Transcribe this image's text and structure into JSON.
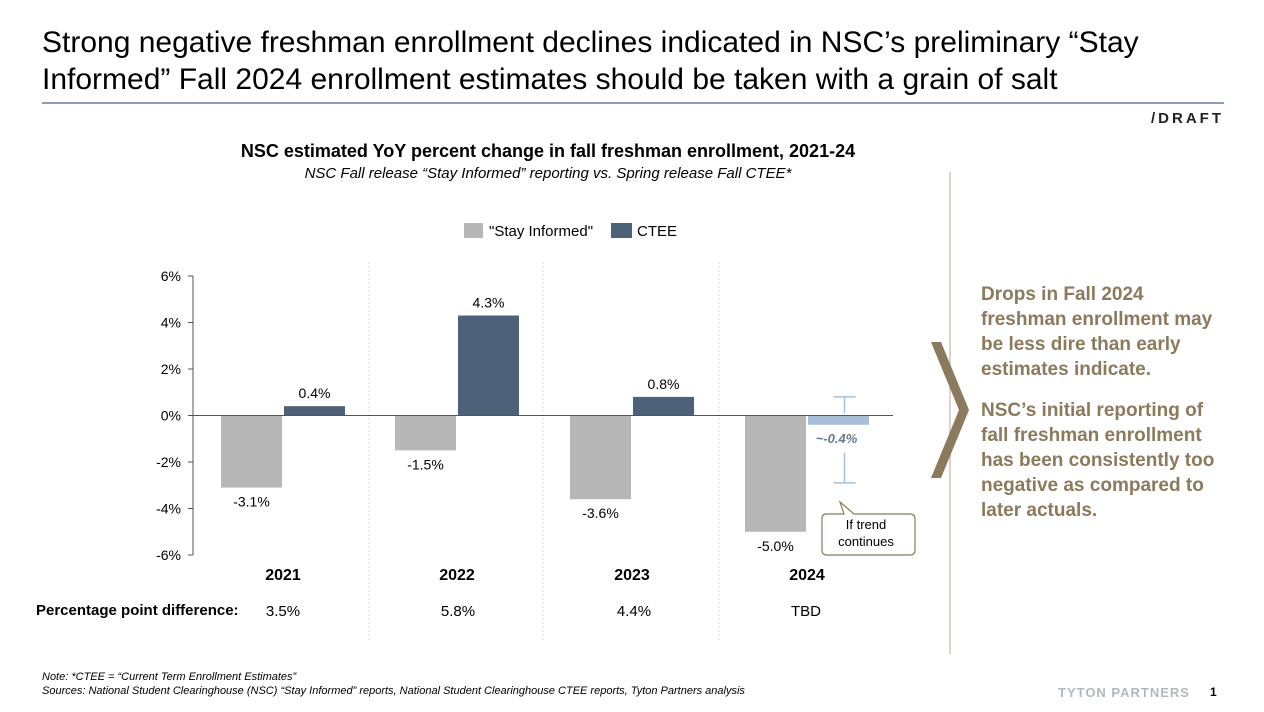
{
  "slide": {
    "title": "Strong negative freshman enrollment declines indicated in NSC’s preliminary “Stay Informed” Fall 2024 enrollment estimates should be taken with a grain of salt",
    "draft_label": "/DRAFT",
    "page_number": "1",
    "brand": "TYTON PARTNERS"
  },
  "chart_data": {
    "type": "bar",
    "title": "NSC estimated YoY percent change in fall freshman enrollment, 2021-24",
    "subtitle": "NSC Fall release “Stay Informed” reporting vs. Spring release Fall CTEE*",
    "categories": [
      "2021",
      "2022",
      "2023",
      "2024"
    ],
    "series": [
      {
        "name": "\"Stay Informed\"",
        "color": "#b7b7b7",
        "values": [
          -3.1,
          -1.5,
          -3.6,
          -5.0
        ],
        "labels": [
          "-3.1%",
          "-1.5%",
          "-3.6%",
          "-5.0%"
        ]
      },
      {
        "name": "CTEE",
        "color": "#4d6178",
        "values": [
          0.4,
          4.3,
          0.8,
          -0.4
        ],
        "labels": [
          "0.4%",
          "4.3%",
          "0.8%",
          "~-0.4%"
        ]
      }
    ],
    "projected_color": "#a8bfd9",
    "projection_range": [
      0.8,
      -2.9
    ],
    "projection_note": "If trend continues",
    "ylim": [
      -6,
      6
    ],
    "yticks": [
      6,
      4,
      2,
      0,
      -2,
      -4,
      -6
    ],
    "ytick_labels": [
      "6%",
      "4%",
      "2%",
      "0%",
      "-2%",
      "-4%",
      "-6%"
    ],
    "xlabel": "",
    "ylabel": ""
  },
  "ppd": {
    "label": "Percentage point difference:",
    "values": [
      "3.5%",
      "5.8%",
      "4.4%",
      "TBD"
    ]
  },
  "callout": {
    "p1": "Drops in Fall 2024 freshman enrollment may be less dire than early estimates indicate.",
    "p2": "NSC’s initial reporting of fall freshman enrollment has been consistently too negative as compared to later actuals."
  },
  "footer": {
    "note": "Note: *CTEE = “Current Term Enrollment Estimates”",
    "sources": "Sources: National Student Clearinghouse (NSC) “Stay Informed” reports, National Student Clearinghouse CTEE reports, Tyton Partners analysis"
  }
}
